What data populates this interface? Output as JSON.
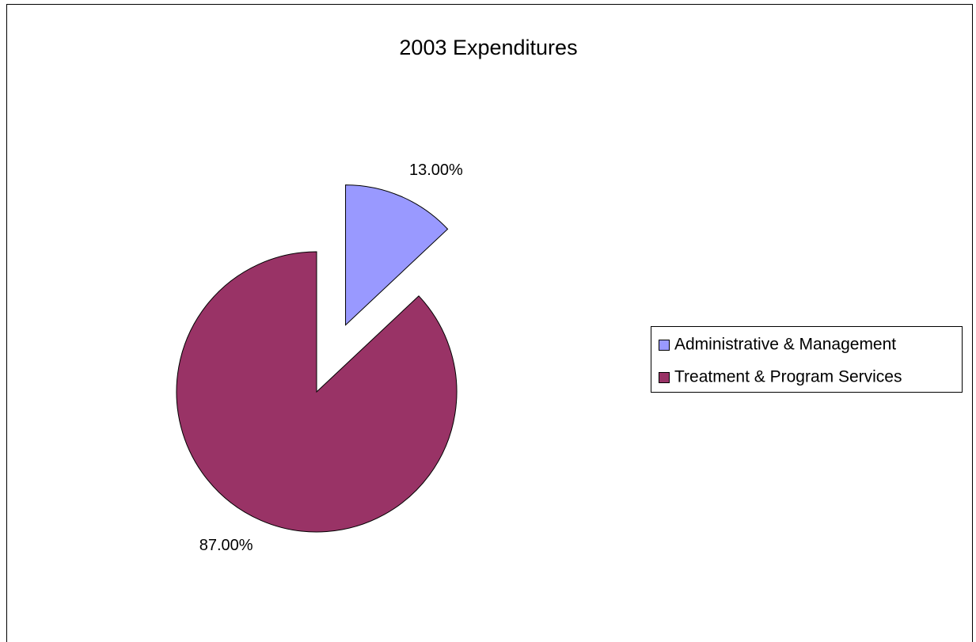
{
  "chart_data": {
    "type": "pie",
    "title": "2003 Expenditures",
    "categories": [
      "Administrative & Management",
      "Treatment & Program Services"
    ],
    "values": [
      13,
      87
    ],
    "value_labels": [
      "13.00%",
      "87.00%"
    ],
    "colors": [
      "#9999ff",
      "#993366"
    ],
    "exploded": [
      true,
      false
    ],
    "legend": "right"
  }
}
